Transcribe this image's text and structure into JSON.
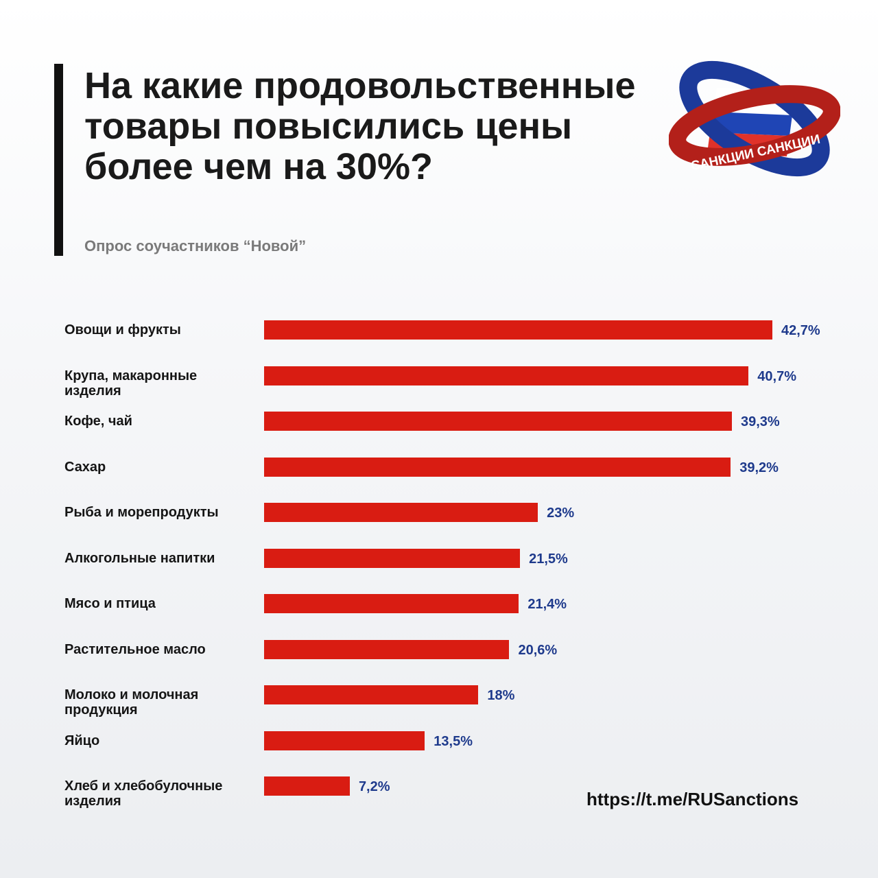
{
  "title": "На какие продовольственные товары повысились цены более чем на 30%?",
  "subtitle": "Опрос соучастников “Новой”",
  "logo_text": "САНКЦИИ",
  "url": "https://t.me/RUSanctions",
  "colors": {
    "bar": "#d91c12",
    "value": "#1e3a8c"
  },
  "chart_data": {
    "type": "bar",
    "orientation": "horizontal",
    "title": "На какие продовольственные товары повысились цены более чем на 30%?",
    "categories": [
      "Овощи и фрукты",
      "Крупа, макаронные изделия",
      "Кофе, чай",
      "Сахар",
      "Рыба и морепродукты",
      "Алкогольные напитки",
      "Мясо и птица",
      "Растительное масло",
      "Молоко и молочная продукция",
      "Яйцо",
      "Хлеб и хлебобулочные изделия"
    ],
    "values": [
      42.7,
      40.7,
      39.3,
      39.2,
      23,
      21.5,
      21.4,
      20.6,
      18,
      13.5,
      7.2
    ],
    "labels": [
      "42,7%",
      "40,7%",
      "39,3%",
      "39,2%",
      "23%",
      "21,5%",
      "21,4%",
      "20,6%",
      "18%",
      "13,5%",
      "7,2%"
    ],
    "unit": "%",
    "xlim": [
      0,
      42.7
    ],
    "grid": false
  }
}
